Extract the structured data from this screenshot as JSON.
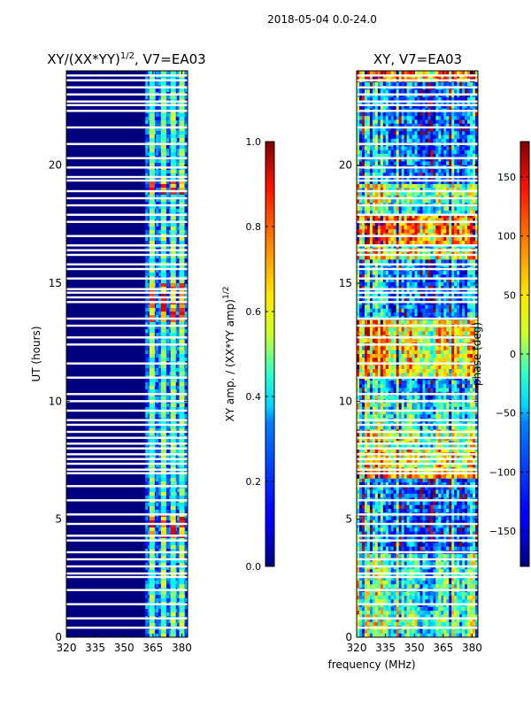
{
  "figure": {
    "suptitle": "2018-05-04 0.0-24.0",
    "xlabel": "frequency (MHz)"
  },
  "chart_data": [
    {
      "type": "heatmap",
      "title_base": "XY/(XX*YY)",
      "title_sup": "1/2",
      "title_tail": ", V7=EA03",
      "xlabel": "frequency (MHz)",
      "ylabel": "UT (hours)",
      "xlim": [
        320,
        383
      ],
      "ylim": [
        0,
        24
      ],
      "xticks": [
        320,
        335,
        350,
        365,
        380
      ],
      "xticklabels": [
        "320",
        "335",
        "350",
        "365",
        "380"
      ],
      "yticks": [
        0,
        5,
        10,
        15,
        20
      ],
      "yticklabels": [
        "0",
        "5",
        "10",
        "15",
        "20"
      ],
      "colorbar": {
        "label_base": "XY amp. / (XX*YY amp)",
        "label_sup": "1/2",
        "range": [
          0.0,
          1.0
        ],
        "ticks": [
          0.0,
          0.2,
          0.4,
          0.6,
          0.8,
          1.0
        ],
        "ticklabels": [
          "0.0",
          "0.2",
          "0.4",
          "0.6",
          "0.8",
          "1.0"
        ],
        "colormap": "jet"
      },
      "active_band_mhz": [
        361,
        382
      ],
      "bright_columns_mhz": [
        364.5,
        370.5,
        375.5,
        380.0
      ]
    },
    {
      "type": "heatmap",
      "title": "XY, V7=EA03",
      "xlabel": "frequency (MHz)",
      "ylabel": "",
      "xlim": [
        320,
        383
      ],
      "ylim": [
        0,
        24
      ],
      "xticks": [
        320,
        335,
        350,
        365,
        380
      ],
      "xticklabels": [
        "320",
        "335",
        "350",
        "365",
        "380"
      ],
      "yticks": [
        0,
        5,
        10,
        15,
        20
      ],
      "yticklabels": [
        "0",
        "5",
        "10",
        "15",
        "20"
      ],
      "colorbar": {
        "label": "phase (deg)",
        "range": [
          -180,
          180
        ],
        "ticks": [
          -150,
          -100,
          -50,
          0,
          50,
          100,
          150
        ],
        "ticklabels": [
          "−150",
          "−100",
          "−50",
          "0",
          "50",
          "100",
          "150"
        ],
        "colormap": "jet"
      }
    }
  ],
  "flagged_time_rows_hours": [
    0.4,
    0.8,
    1.4,
    2.0,
    2.55,
    2.7,
    3.0,
    3.3,
    3.6,
    4.1,
    4.3,
    4.8,
    5.2,
    5.8,
    6.4,
    6.95,
    7.1,
    7.35,
    7.55,
    7.75,
    8.0,
    8.2,
    8.45,
    8.7,
    9.0,
    9.2,
    9.6,
    10.0,
    10.3,
    11.0,
    11.6,
    12.4,
    12.7,
    13.2,
    13.5,
    14.2,
    14.4,
    14.6,
    14.75,
    15.2,
    15.6,
    15.8,
    16.2,
    16.4,
    16.6,
    17.0,
    17.6,
    17.9,
    18.3,
    18.6,
    18.9,
    19.35,
    19.5,
    19.9,
    20.3,
    20.9,
    21.6,
    22.3,
    22.55,
    22.7,
    23.0,
    23.3,
    23.6,
    23.8
  ]
}
